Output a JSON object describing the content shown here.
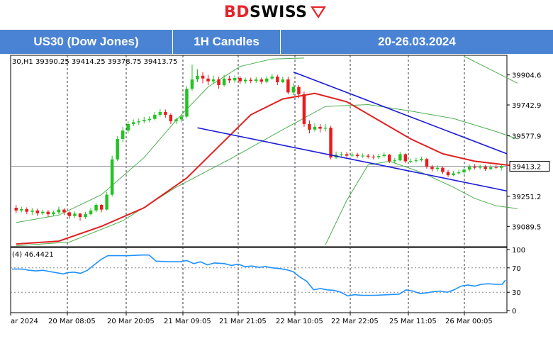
{
  "brand": {
    "name_part1": "BD",
    "name_part2": "SWISS",
    "logo_icon": "bdswiss-chevron-icon",
    "accent": "#e5242b"
  },
  "header": {
    "instrument": "US30 (Dow Jones)",
    "timeframe": "1H Candles",
    "period": "20-26.03.2024",
    "background": "#4a83d4"
  },
  "chart_data": [
    {
      "type": "candlestick",
      "ohlc_label": "30,H1  39390.25 39414.25 39378.75 39413.75",
      "price_ticks": [
        "39904.6",
        "39742.9",
        "39577.9",
        "39413.2",
        "39251.2",
        "39089.5"
      ],
      "current_price": "39413.2",
      "xlabels": [
        "ar 2024",
        "20 Mar 08:05",
        "20 Mar 20:05",
        "21 Mar 09:05",
        "21 Mar 21:05",
        "22 Mar 10:05",
        "22 Mar 22:05",
        "25 Mar 11:05",
        "26 Mar 00:05"
      ],
      "ylim": [
        38980,
        40010
      ],
      "candles": [
        {
          "o": 39190,
          "c": 39175,
          "h": 39205,
          "l": 39160
        },
        {
          "o": 39175,
          "c": 39182,
          "h": 39195,
          "l": 39165
        },
        {
          "o": 39182,
          "c": 39168,
          "h": 39192,
          "l": 39155
        },
        {
          "o": 39168,
          "c": 39175,
          "h": 39188,
          "l": 39150
        },
        {
          "o": 39175,
          "c": 39160,
          "h": 39185,
          "l": 39145
        },
        {
          "o": 39160,
          "c": 39168,
          "h": 39180,
          "l": 39150
        },
        {
          "o": 39168,
          "c": 39155,
          "h": 39178,
          "l": 39140
        },
        {
          "o": 39155,
          "c": 39165,
          "h": 39175,
          "l": 39145
        },
        {
          "o": 39165,
          "c": 39180,
          "h": 39195,
          "l": 39155
        },
        {
          "o": 39180,
          "c": 39165,
          "h": 39188,
          "l": 39150
        },
        {
          "o": 39165,
          "c": 39145,
          "h": 39170,
          "l": 39130
        },
        {
          "o": 39145,
          "c": 39158,
          "h": 39170,
          "l": 39135
        },
        {
          "o": 39158,
          "c": 39140,
          "h": 39162,
          "l": 39120
        },
        {
          "o": 39140,
          "c": 39155,
          "h": 39168,
          "l": 39130
        },
        {
          "o": 39155,
          "c": 39175,
          "h": 39190,
          "l": 39148
        },
        {
          "o": 39175,
          "c": 39205,
          "h": 39215,
          "l": 39165
        },
        {
          "o": 39205,
          "c": 39180,
          "h": 39210,
          "l": 39165
        },
        {
          "o": 39180,
          "c": 39260,
          "h": 39275,
          "l": 39175
        },
        {
          "o": 39260,
          "c": 39450,
          "h": 39470,
          "l": 39250
        },
        {
          "o": 39450,
          "c": 39560,
          "h": 39575,
          "l": 39440
        },
        {
          "o": 39560,
          "c": 39605,
          "h": 39625,
          "l": 39545
        },
        {
          "o": 39605,
          "c": 39640,
          "h": 39655,
          "l": 39590
        },
        {
          "o": 39640,
          "c": 39650,
          "h": 39665,
          "l": 39628
        },
        {
          "o": 39650,
          "c": 39655,
          "h": 39670,
          "l": 39635
        },
        {
          "o": 39655,
          "c": 39662,
          "h": 39678,
          "l": 39645
        },
        {
          "o": 39662,
          "c": 39668,
          "h": 39682,
          "l": 39650
        },
        {
          "o": 39668,
          "c": 39690,
          "h": 39705,
          "l": 39660
        },
        {
          "o": 39690,
          "c": 39705,
          "h": 39720,
          "l": 39680
        },
        {
          "o": 39705,
          "c": 39690,
          "h": 39718,
          "l": 39675
        },
        {
          "o": 39690,
          "c": 39655,
          "h": 39698,
          "l": 39640
        },
        {
          "o": 39655,
          "c": 39665,
          "h": 39675,
          "l": 39640
        },
        {
          "o": 39665,
          "c": 39680,
          "h": 39690,
          "l": 39650
        },
        {
          "o": 39680,
          "c": 39830,
          "h": 39845,
          "l": 39672
        },
        {
          "o": 39830,
          "c": 39880,
          "h": 39960,
          "l": 39820
        },
        {
          "o": 39880,
          "c": 39900,
          "h": 39935,
          "l": 39865
        },
        {
          "o": 39900,
          "c": 39885,
          "h": 39920,
          "l": 39860
        },
        {
          "o": 39885,
          "c": 39870,
          "h": 39905,
          "l": 39850
        },
        {
          "o": 39870,
          "c": 39880,
          "h": 39900,
          "l": 39855
        },
        {
          "o": 39880,
          "c": 39850,
          "h": 39895,
          "l": 39830
        },
        {
          "o": 39850,
          "c": 39885,
          "h": 39905,
          "l": 39840
        },
        {
          "o": 39885,
          "c": 39875,
          "h": 39900,
          "l": 39860
        },
        {
          "o": 39875,
          "c": 39888,
          "h": 39902,
          "l": 39862
        },
        {
          "o": 39888,
          "c": 39870,
          "h": 39898,
          "l": 39855
        },
        {
          "o": 39870,
          "c": 39878,
          "h": 39890,
          "l": 39858
        },
        {
          "o": 39878,
          "c": 39872,
          "h": 39890,
          "l": 39860
        },
        {
          "o": 39872,
          "c": 39880,
          "h": 39893,
          "l": 39862
        },
        {
          "o": 39880,
          "c": 39868,
          "h": 39890,
          "l": 39855
        },
        {
          "o": 39868,
          "c": 39885,
          "h": 39898,
          "l": 39860
        },
        {
          "o": 39885,
          "c": 39895,
          "h": 39910,
          "l": 39878
        },
        {
          "o": 39895,
          "c": 39865,
          "h": 39905,
          "l": 39850
        },
        {
          "o": 39865,
          "c": 39880,
          "h": 39895,
          "l": 39860
        },
        {
          "o": 39880,
          "c": 39810,
          "h": 39895,
          "l": 39800
        },
        {
          "o": 39810,
          "c": 39840,
          "h": 39860,
          "l": 39795
        },
        {
          "o": 39840,
          "c": 39800,
          "h": 39850,
          "l": 39780
        },
        {
          "o": 39800,
          "c": 39640,
          "h": 39815,
          "l": 39625
        },
        {
          "o": 39640,
          "c": 39610,
          "h": 39660,
          "l": 39590
        },
        {
          "o": 39610,
          "c": 39625,
          "h": 39645,
          "l": 39600
        },
        {
          "o": 39625,
          "c": 39615,
          "h": 39640,
          "l": 39595
        },
        {
          "o": 39615,
          "c": 39620,
          "h": 39640,
          "l": 39600
        },
        {
          "o": 39620,
          "c": 39460,
          "h": 39630,
          "l": 39450
        },
        {
          "o": 39460,
          "c": 39475,
          "h": 39492,
          "l": 39452
        },
        {
          "o": 39475,
          "c": 39478,
          "h": 39490,
          "l": 39462
        },
        {
          "o": 39478,
          "c": 39470,
          "h": 39490,
          "l": 39460
        },
        {
          "o": 39470,
          "c": 39475,
          "h": 39488,
          "l": 39462
        },
        {
          "o": 39475,
          "c": 39468,
          "h": 39485,
          "l": 39458
        },
        {
          "o": 39468,
          "c": 39470,
          "h": 39482,
          "l": 39458
        },
        {
          "o": 39470,
          "c": 39465,
          "h": 39480,
          "l": 39455
        },
        {
          "o": 39465,
          "c": 39462,
          "h": 39476,
          "l": 39450
        },
        {
          "o": 39462,
          "c": 39468,
          "h": 39480,
          "l": 39452
        },
        {
          "o": 39468,
          "c": 39475,
          "h": 39488,
          "l": 39460
        },
        {
          "o": 39475,
          "c": 39440,
          "h": 39480,
          "l": 39430
        },
        {
          "o": 39440,
          "c": 39445,
          "h": 39458,
          "l": 39430
        },
        {
          "o": 39445,
          "c": 39478,
          "h": 39490,
          "l": 39440
        },
        {
          "o": 39478,
          "c": 39440,
          "h": 39482,
          "l": 39430
        },
        {
          "o": 39440,
          "c": 39442,
          "h": 39455,
          "l": 39430
        },
        {
          "o": 39442,
          "c": 39445,
          "h": 39458,
          "l": 39432
        },
        {
          "o": 39445,
          "c": 39452,
          "h": 39465,
          "l": 39438
        },
        {
          "o": 39452,
          "c": 39410,
          "h": 39458,
          "l": 39400
        },
        {
          "o": 39410,
          "c": 39398,
          "h": 39420,
          "l": 39385
        },
        {
          "o": 39398,
          "c": 39405,
          "h": 39418,
          "l": 39385
        },
        {
          "o": 39405,
          "c": 39382,
          "h": 39412,
          "l": 39372
        },
        {
          "o": 39382,
          "c": 39365,
          "h": 39392,
          "l": 39355
        },
        {
          "o": 39365,
          "c": 39375,
          "h": 39388,
          "l": 39360
        },
        {
          "o": 39375,
          "c": 39380,
          "h": 39395,
          "l": 39368
        },
        {
          "o": 39380,
          "c": 39395,
          "h": 39408,
          "l": 39372
        },
        {
          "o": 39395,
          "c": 39410,
          "h": 39422,
          "l": 39385
        },
        {
          "o": 39410,
          "c": 39405,
          "h": 39425,
          "l": 39395
        },
        {
          "o": 39405,
          "c": 39410,
          "h": 39422,
          "l": 39395
        },
        {
          "o": 39410,
          "c": 39398,
          "h": 39420,
          "l": 39388
        },
        {
          "o": 39398,
          "c": 39408,
          "h": 39420,
          "l": 39392
        },
        {
          "o": 39408,
          "c": 39405,
          "h": 39418,
          "l": 39398
        },
        {
          "o": 39405,
          "c": 39414,
          "h": 39420,
          "l": 39390
        }
      ],
      "ma_red": [
        [
          0,
          38995
        ],
        [
          8,
          39010
        ],
        [
          16,
          39090
        ],
        [
          24,
          39190
        ],
        [
          32,
          39350
        ],
        [
          38,
          39520
        ],
        [
          44,
          39690
        ],
        [
          50,
          39775
        ],
        [
          56,
          39805
        ],
        [
          62,
          39760
        ],
        [
          68,
          39660
        ],
        [
          74,
          39560
        ],
        [
          80,
          39480
        ],
        [
          86,
          39440
        ],
        [
          94,
          39413
        ]
      ],
      "band_upper": [
        [
          0,
          39110
        ],
        [
          8,
          39150
        ],
        [
          16,
          39260
        ],
        [
          24,
          39460
        ],
        [
          30,
          39660
        ],
        [
          36,
          39840
        ],
        [
          42,
          39950
        ],
        [
          48,
          39990
        ],
        [
          54,
          39995
        ]
      ],
      "band_upper2": [
        [
          84,
          40005
        ],
        [
          94,
          39860
        ]
      ],
      "band_mid": [
        [
          0,
          38985
        ],
        [
          10,
          39005
        ],
        [
          20,
          39120
        ],
        [
          30,
          39300
        ],
        [
          40,
          39450
        ],
        [
          50,
          39610
        ],
        [
          58,
          39735
        ],
        [
          66,
          39745
        ],
        [
          74,
          39710
        ],
        [
          82,
          39670
        ],
        [
          90,
          39600
        ],
        [
          94,
          39560
        ]
      ],
      "band_lower": [
        [
          58,
          38990
        ],
        [
          62,
          39230
        ],
        [
          66,
          39420
        ],
        [
          70,
          39440
        ],
        [
          76,
          39380
        ],
        [
          82,
          39300
        ],
        [
          86,
          39240
        ],
        [
          90,
          39200
        ],
        [
          94,
          39185
        ]
      ],
      "trendlines": [
        {
          "from": [
            52,
            39920
          ],
          "to": [
            94,
            39480
          ]
        },
        {
          "from": [
            34,
            39620
          ],
          "to": [
            94,
            39280
          ]
        }
      ],
      "grid": true
    },
    {
      "type": "line",
      "label": "(4) 46.4421",
      "yticks": [
        "100",
        "70",
        "30",
        "0"
      ],
      "ylim": [
        0,
        100
      ],
      "levels": [
        70,
        30
      ],
      "values": [
        [
          0,
          68
        ],
        [
          3,
          68
        ],
        [
          5,
          66
        ],
        [
          7,
          65
        ],
        [
          9,
          66
        ],
        [
          11,
          64
        ],
        [
          13,
          62
        ],
        [
          15,
          60
        ],
        [
          16,
          62
        ],
        [
          18,
          63
        ],
        [
          20,
          61
        ],
        [
          22,
          66
        ],
        [
          24,
          75
        ],
        [
          26,
          84
        ],
        [
          28,
          90
        ],
        [
          30,
          90
        ],
        [
          34,
          90
        ],
        [
          38,
          91
        ],
        [
          40,
          91
        ],
        [
          42,
          81
        ],
        [
          46,
          80
        ],
        [
          49,
          80
        ],
        [
          51,
          82
        ],
        [
          53,
          77
        ],
        [
          55,
          80
        ],
        [
          57,
          75
        ],
        [
          59,
          78
        ],
        [
          62,
          77
        ],
        [
          64,
          74
        ],
        [
          66,
          76
        ],
        [
          68,
          72
        ],
        [
          70,
          73
        ],
        [
          72,
          71
        ],
        [
          74,
          72
        ],
        [
          76,
          70
        ],
        [
          78,
          69
        ],
        [
          80,
          67
        ],
        [
          82,
          64
        ],
        [
          84,
          55
        ],
        [
          86,
          48
        ],
        [
          88,
          34
        ],
        [
          90,
          36
        ],
        [
          92,
          34
        ],
        [
          94,
          33
        ],
        [
          96,
          30
        ],
        [
          98,
          24
        ],
        [
          100,
          26
        ],
        [
          102,
          25
        ],
        [
          106,
          25
        ],
        [
          110,
          26
        ],
        [
          113,
          27
        ],
        [
          115,
          34
        ],
        [
          117,
          32
        ],
        [
          119,
          28
        ],
        [
          121,
          29
        ],
        [
          123,
          31
        ],
        [
          125,
          32
        ],
        [
          127,
          30
        ],
        [
          129,
          34
        ],
        [
          131,
          40
        ],
        [
          133,
          42
        ],
        [
          135,
          40
        ],
        [
          137,
          43
        ],
        [
          139,
          44
        ],
        [
          141,
          43
        ],
        [
          143,
          43
        ],
        [
          144,
          50
        ]
      ],
      "grid": true
    }
  ]
}
